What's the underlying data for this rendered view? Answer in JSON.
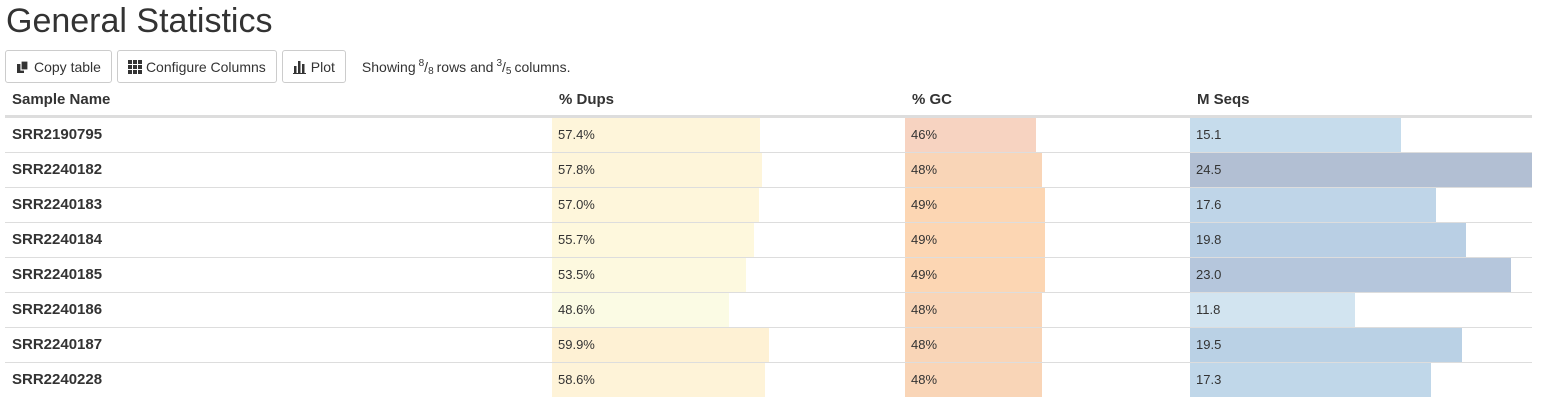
{
  "page": {
    "title": "General Statistics"
  },
  "toolbar": {
    "copy_label": "Copy table",
    "configure_label": "Configure Columns",
    "plot_label": "Plot",
    "showing_prefix": "Showing",
    "rows_shown": "8",
    "rows_total": "8",
    "rows_word": "rows and",
    "cols_shown": "3",
    "cols_total": "5",
    "cols_word": "columns."
  },
  "table": {
    "headers": [
      "Sample Name",
      "% Dups",
      "% GC",
      "M Seqs"
    ],
    "rows": [
      {
        "name": "SRR2190795",
        "dups": "57.4%",
        "gc": "46%",
        "mseqs": "15.1"
      },
      {
        "name": "SRR2240182",
        "dups": "57.8%",
        "gc": "48%",
        "mseqs": "24.5"
      },
      {
        "name": "SRR2240183",
        "dups": "57.0%",
        "gc": "49%",
        "mseqs": "17.6"
      },
      {
        "name": "SRR2240184",
        "dups": "55.7%",
        "gc": "49%",
        "mseqs": "19.8"
      },
      {
        "name": "SRR2240185",
        "dups": "53.5%",
        "gc": "49%",
        "mseqs": "23.0"
      },
      {
        "name": "SRR2240186",
        "dups": "48.6%",
        "gc": "48%",
        "mseqs": "11.8"
      },
      {
        "name": "SRR2240187",
        "dups": "59.9%",
        "gc": "48%",
        "mseqs": "19.5"
      },
      {
        "name": "SRR2240228",
        "dups": "58.6%",
        "gc": "48%",
        "mseqs": "17.3"
      }
    ],
    "bar_fractions": {
      "dups": [
        0.59,
        0.594,
        0.586,
        0.572,
        0.55,
        0.5,
        0.616,
        0.602
      ],
      "gc": [
        0.46,
        0.48,
        0.49,
        0.49,
        0.49,
        0.48,
        0.48,
        0.48
      ],
      "mseqs": [
        0.616,
        1.0,
        0.718,
        0.808,
        0.939,
        0.482,
        0.796,
        0.706
      ]
    },
    "colors": {
      "dups": [
        "#fef5da",
        "#fef5da",
        "#fef6db",
        "#fef8dd",
        "#fdf9df",
        "#fbfbe4",
        "#fef1d4",
        "#fef3d8"
      ],
      "gc": [
        "#f7d3c1",
        "#f9d5b7",
        "#fcd6b3",
        "#fcd6b3",
        "#fcd6b3",
        "#f9d5b7",
        "#f9d5b7",
        "#f9d5b7"
      ],
      "mseqs": [
        "#c6dcec",
        "#b2bfd3",
        "#bfd5e8",
        "#b9cfe4",
        "#b5c6dc",
        "#d2e4f0",
        "#bad1e5",
        "#c0d7e9"
      ]
    }
  }
}
